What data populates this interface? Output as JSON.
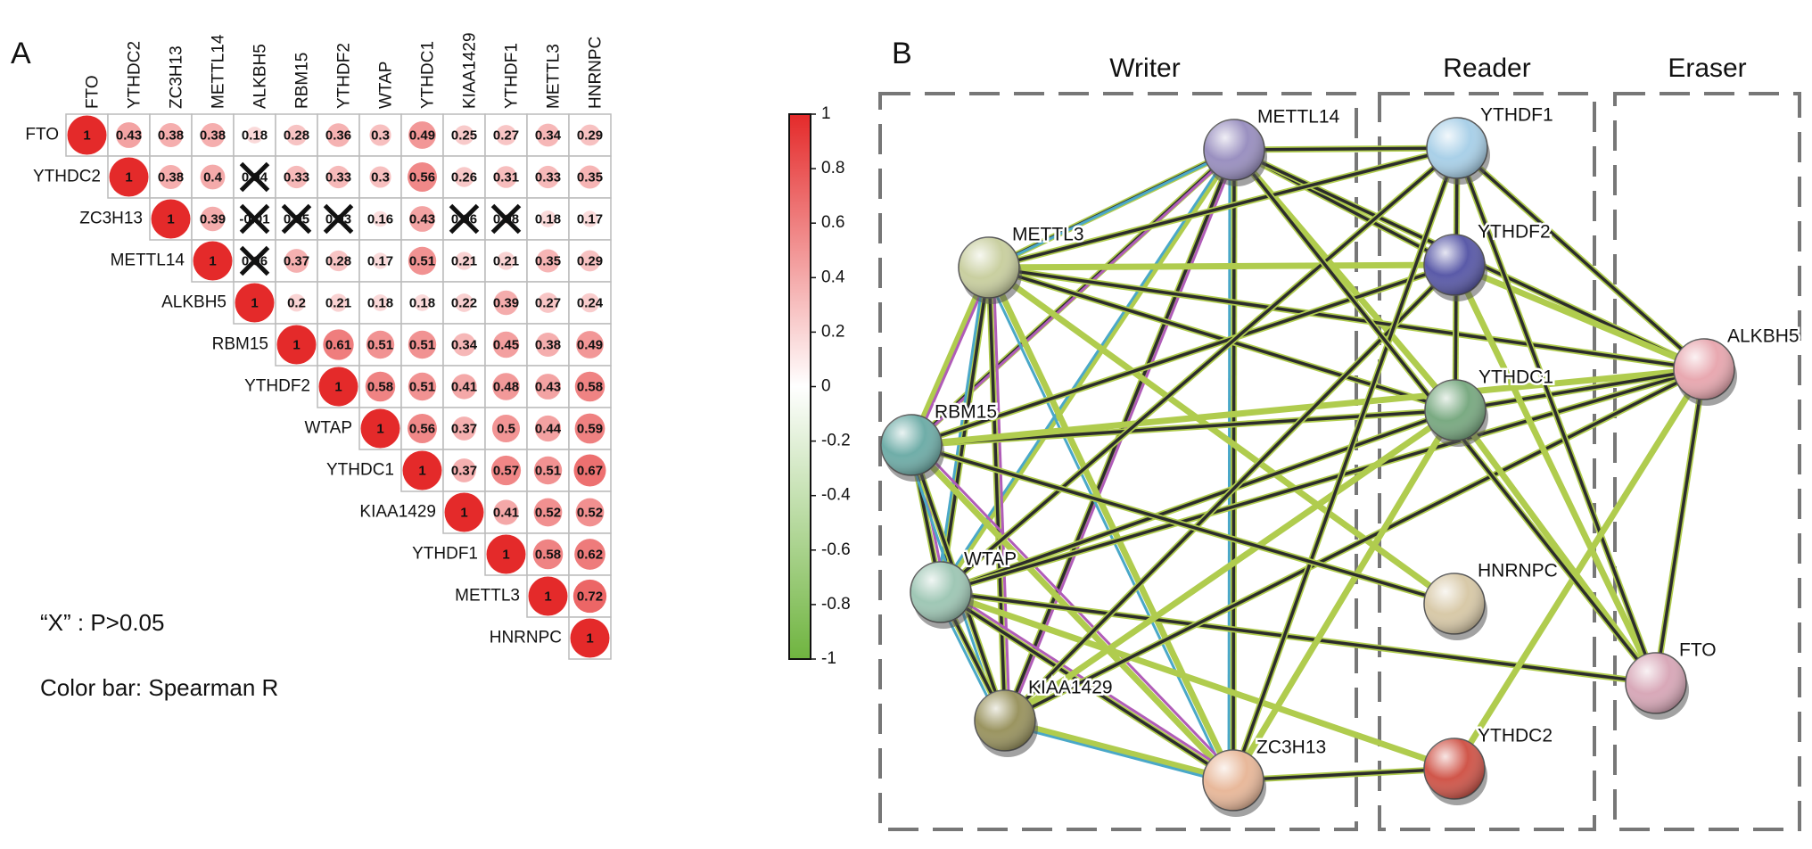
{
  "chart_data": [
    {
      "type": "corrplot",
      "panel": "A",
      "genes": [
        "FTO",
        "YTHDC2",
        "ZC3H13",
        "METTL14",
        "ALKBH5",
        "RBM15",
        "YTHDF2",
        "WTAP",
        "YTHDC1",
        "KIAA1429",
        "YTHDF1",
        "METTL3",
        "HNRNPC"
      ],
      "rows": [
        [
          1,
          0.43,
          0.38,
          0.38,
          0.18,
          0.28,
          0.36,
          0.3,
          0.49,
          0.25,
          0.27,
          0.34,
          0.29
        ],
        [
          1,
          0.38,
          0.4,
          0.04,
          0.33,
          0.33,
          0.3,
          0.56,
          0.26,
          0.31,
          0.33,
          0.35
        ],
        [
          1,
          0.39,
          -0.01,
          0.05,
          0.03,
          0.16,
          0.43,
          0.06,
          0.08,
          0.18,
          0.17
        ],
        [
          1,
          0.06,
          0.37,
          0.28,
          0.17,
          0.51,
          0.21,
          0.21,
          0.35,
          0.29
        ],
        [
          1,
          0.2,
          0.21,
          0.18,
          0.18,
          0.22,
          0.39,
          0.27,
          0.24
        ],
        [
          1,
          0.61,
          0.51,
          0.51,
          0.34,
          0.45,
          0.38,
          0.49
        ],
        [
          1,
          0.58,
          0.51,
          0.41,
          0.48,
          0.43,
          0.58
        ],
        [
          1,
          0.56,
          0.37,
          0.5,
          0.44,
          0.59
        ],
        [
          1,
          0.37,
          0.57,
          0.51,
          0.67
        ],
        [
          1,
          0.41,
          0.52,
          0.52
        ],
        [
          1,
          0.58,
          0.62
        ],
        [
          1,
          0.72
        ],
        [
          1
        ]
      ],
      "crossed": [
        [
          1,
          3
        ],
        [
          2,
          2
        ],
        [
          2,
          3
        ],
        [
          2,
          4
        ],
        [
          2,
          7
        ],
        [
          2,
          8
        ],
        [
          3,
          1
        ]
      ],
      "colors": {
        "positive": "#e42a2a",
        "zero": "#ffffff",
        "negative": "#6fb43f"
      },
      "clim": [
        -1,
        1
      ],
      "cticks": [
        1,
        0.8,
        0.6,
        0.4,
        0.2,
        0,
        -0.2,
        -0.4,
        -0.6,
        -0.8,
        -1
      ],
      "annotations": [
        "“X” : P>0.05",
        "Color bar: Spearman R"
      ]
    },
    {
      "type": "network",
      "panel": "B",
      "groups": [
        "Writer",
        "Reader",
        "Eraser"
      ],
      "nodes": [
        {
          "label": "METTL14",
          "group": 0,
          "color": "#9a90c0"
        },
        {
          "label": "METTL3",
          "group": 0,
          "color": "#c9cfa0"
        },
        {
          "label": "RBM15",
          "group": 0,
          "color": "#6fada8"
        },
        {
          "label": "WTAP",
          "group": 0,
          "color": "#9fc7b5"
        },
        {
          "label": "KIAA1429",
          "group": 0,
          "color": "#9a9460"
        },
        {
          "label": "ZC3H13",
          "group": 0,
          "color": "#e8b89a"
        },
        {
          "label": "YTHDF1",
          "group": 1,
          "color": "#a9d0e8"
        },
        {
          "label": "YTHDF2",
          "group": 1,
          "color": "#5a5aa8"
        },
        {
          "label": "YTHDC1",
          "group": 1,
          "color": "#7aaa82"
        },
        {
          "label": "HNRNPC",
          "group": 1,
          "color": "#d8c9a8"
        },
        {
          "label": "YTHDC2",
          "group": 1,
          "color": "#d0564a"
        },
        {
          "label": "ALKBH5",
          "group": 2,
          "color": "#e8a8b0"
        },
        {
          "label": "FTO",
          "group": 2,
          "color": "#d8a8b8"
        }
      ],
      "edges": [
        [
          0,
          1
        ],
        [
          0,
          2
        ],
        [
          0,
          3
        ],
        [
          0,
          4
        ],
        [
          0,
          5
        ],
        [
          1,
          2
        ],
        [
          1,
          3
        ],
        [
          1,
          4
        ],
        [
          1,
          5
        ],
        [
          2,
          3
        ],
        [
          2,
          4
        ],
        [
          2,
          5
        ],
        [
          3,
          4
        ],
        [
          3,
          5
        ],
        [
          4,
          5
        ],
        [
          0,
          6
        ],
        [
          0,
          7
        ],
        [
          0,
          8
        ],
        [
          0,
          11
        ],
        [
          1,
          6
        ],
        [
          1,
          7
        ],
        [
          1,
          8
        ],
        [
          1,
          11
        ],
        [
          1,
          9
        ],
        [
          2,
          7
        ],
        [
          2,
          8
        ],
        [
          2,
          11
        ],
        [
          3,
          6
        ],
        [
          3,
          8
        ],
        [
          3,
          10
        ],
        [
          3,
          12
        ],
        [
          3,
          11
        ],
        [
          4,
          8
        ],
        [
          4,
          11
        ],
        [
          4,
          7
        ],
        [
          5,
          8
        ],
        [
          5,
          6
        ],
        [
          6,
          11
        ],
        [
          7,
          11
        ],
        [
          8,
          11
        ],
        [
          6,
          8
        ],
        [
          7,
          12
        ],
        [
          6,
          12
        ],
        [
          11,
          12
        ],
        [
          11,
          10
        ],
        [
          10,
          5
        ],
        [
          2,
          9
        ],
        [
          8,
          12
        ],
        [
          0,
          12
        ]
      ]
    }
  ]
}
